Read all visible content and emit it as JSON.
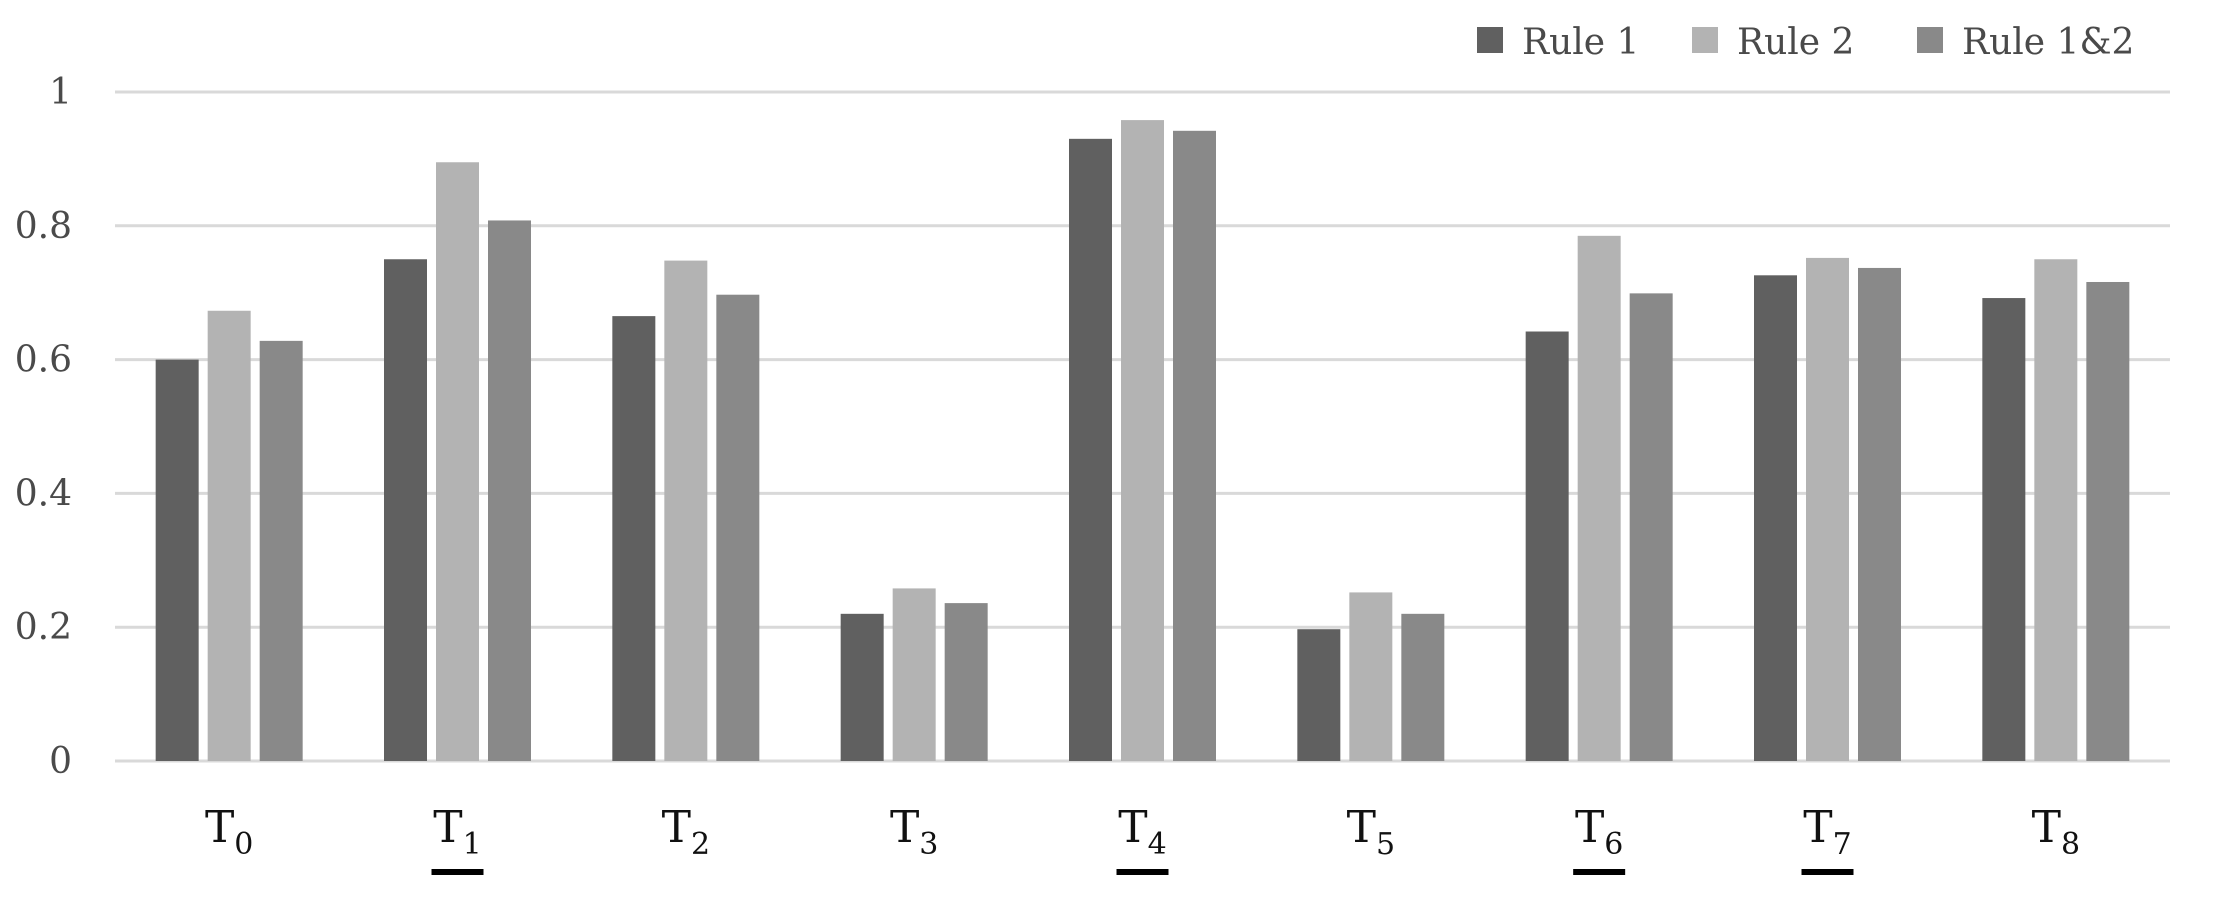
{
  "chart_data": {
    "type": "bar",
    "title": "",
    "xlabel": "",
    "ylabel": "",
    "ylim": [
      0,
      1
    ],
    "yticks": [
      "0",
      "0.2",
      "0.4",
      "0.6",
      "0.8",
      "1"
    ],
    "grid": true,
    "legend_position": "top-right",
    "categories": [
      {
        "main": "T",
        "sub": "0",
        "underlined": false
      },
      {
        "main": "T",
        "sub": "1",
        "underlined": true
      },
      {
        "main": "T",
        "sub": "2",
        "underlined": false
      },
      {
        "main": "T",
        "sub": "3",
        "underlined": false
      },
      {
        "main": "T",
        "sub": "4",
        "underlined": true
      },
      {
        "main": "T",
        "sub": "5",
        "underlined": false
      },
      {
        "main": "T",
        "sub": "6",
        "underlined": true
      },
      {
        "main": "T",
        "sub": "7",
        "underlined": true
      },
      {
        "main": "T",
        "sub": "8",
        "underlined": false
      }
    ],
    "series": [
      {
        "name": "Rule 1",
        "color": "#606060",
        "values": [
          0.6,
          0.75,
          0.665,
          0.22,
          0.93,
          0.197,
          0.642,
          0.726,
          0.692
        ]
      },
      {
        "name": "Rule 2",
        "color": "#b3b3b3",
        "values": [
          0.673,
          0.895,
          0.748,
          0.258,
          0.958,
          0.252,
          0.785,
          0.752,
          0.75
        ]
      },
      {
        "name": "Rule 1&2",
        "color": "#898989",
        "values": [
          0.628,
          0.808,
          0.697,
          0.236,
          0.942,
          0.22,
          0.699,
          0.737,
          0.716
        ]
      }
    ]
  }
}
